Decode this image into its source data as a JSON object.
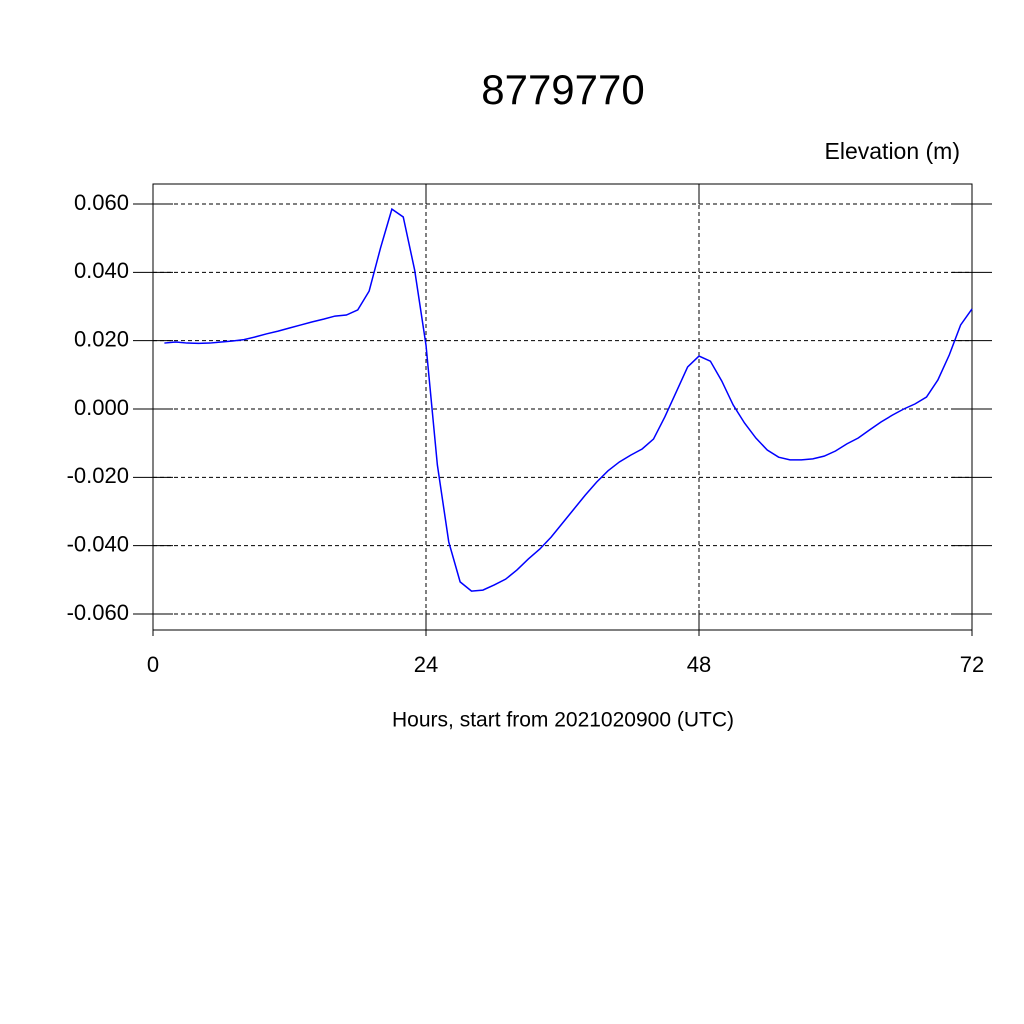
{
  "chart_data": {
    "type": "line",
    "title": "8779770",
    "ylabel": "Elevation (m)",
    "xlabel": "Hours, start from 2021020900 (UTC)",
    "x": [
      1,
      2,
      3,
      4,
      5,
      6,
      7,
      8,
      9,
      10,
      11,
      12,
      13,
      14,
      15,
      16,
      17,
      18,
      19,
      20,
      21,
      22,
      23,
      24,
      25,
      26,
      27,
      28,
      29,
      30,
      31,
      32,
      33,
      34,
      35,
      36,
      37,
      38,
      39,
      40,
      41,
      42,
      43,
      44,
      45,
      46,
      47,
      48,
      49,
      50,
      51,
      52,
      53,
      54,
      55,
      56,
      57,
      58,
      59,
      60,
      61,
      62,
      63,
      64,
      65,
      66,
      67,
      68,
      69,
      70,
      71,
      72
    ],
    "series": [
      {
        "name": "Elevation",
        "color": "#0000ff",
        "values": [
          0.0193,
          0.0196,
          0.0193,
          0.0192,
          0.0193,
          0.0196,
          0.0199,
          0.0203,
          0.0211,
          0.022,
          0.0228,
          0.0237,
          0.0246,
          0.0255,
          0.0263,
          0.0272,
          0.0275,
          0.029,
          0.0345,
          0.0471,
          0.0585,
          0.0562,
          0.0407,
          0.0187,
          -0.0164,
          -0.0389,
          -0.0506,
          -0.0533,
          -0.053,
          -0.0515,
          -0.0498,
          -0.0471,
          -0.0439,
          -0.041,
          -0.0375,
          -0.0334,
          -0.0293,
          -0.0252,
          -0.0214,
          -0.0181,
          -0.0155,
          -0.0135,
          -0.0117,
          -0.0088,
          -0.0023,
          0.005,
          0.0123,
          0.0155,
          0.014,
          0.0082,
          0.0012,
          -0.0041,
          -0.0085,
          -0.012,
          -0.0141,
          -0.0149,
          -0.0149,
          -0.0146,
          -0.0138,
          -0.0123,
          -0.0102,
          -0.0085,
          -0.0061,
          -0.0038,
          -0.0018,
          0.0,
          0.0015,
          0.0035,
          0.0085,
          0.0158,
          0.0246,
          0.0293
        ]
      }
    ],
    "xlim": [
      0,
      72
    ],
    "xticks": [
      0,
      24,
      48,
      72
    ],
    "ylim": [
      -0.06,
      0.06
    ],
    "yticks": [
      {
        "value": -0.06,
        "label": "-0.060"
      },
      {
        "value": -0.04,
        "label": "-0.040"
      },
      {
        "value": -0.02,
        "label": "-0.020"
      },
      {
        "value": 0,
        "label": "0.000"
      },
      {
        "value": 0.02,
        "label": "0.020"
      },
      {
        "value": 0.04,
        "label": "0.040"
      },
      {
        "value": 0.06,
        "label": "0.060"
      }
    ],
    "grid": true
  }
}
